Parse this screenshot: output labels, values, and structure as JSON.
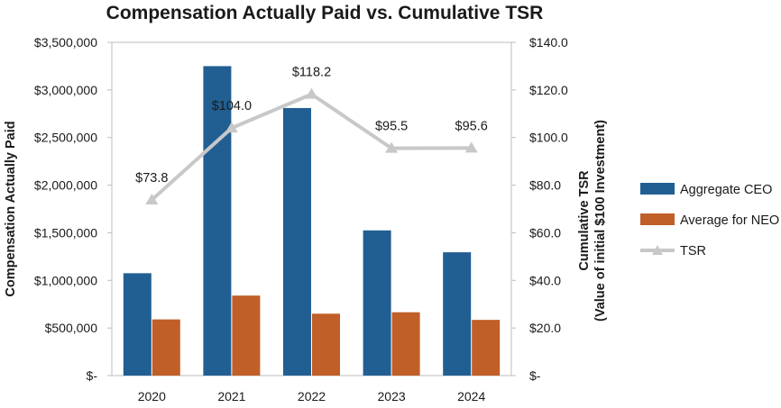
{
  "chart_data": {
    "type": "bar",
    "title": "Compensation Actually Paid vs. Cumulative TSR",
    "categories": [
      "2020",
      "2021",
      "2022",
      "2023",
      "2024"
    ],
    "series": [
      {
        "name": "Aggregate CEO",
        "axis": "left",
        "color": "#215f93",
        "values": [
          1075000,
          3250000,
          2810000,
          1525000,
          1295000
        ]
      },
      {
        "name": "Average for NEO",
        "axis": "left",
        "color": "#c05f27",
        "values": [
          590000,
          840000,
          650000,
          665000,
          585000
        ]
      }
    ],
    "line_series": {
      "name": "TSR",
      "axis": "right",
      "color": "#c8c8c8",
      "values": [
        73.8,
        104.0,
        118.2,
        95.5,
        95.6
      ],
      "labels": [
        "$73.8",
        "$104.0",
        "$118.2",
        "$95.5",
        "$95.6"
      ]
    },
    "ylabel_left": "Compensation Actually Paid",
    "ylabel_right_line1": "Cumulative TSR",
    "ylabel_right_line2": "(Value of initial $100 Investment)",
    "ylim_left": [
      0,
      3500000
    ],
    "ylim_right": [
      0,
      140
    ],
    "yticks_left": [
      "$-",
      "$500,000",
      "$1,000,000",
      "$1,500,000",
      "$2,000,000",
      "$2,500,000",
      "$3,000,000",
      "$3,500,000"
    ],
    "yticks_right": [
      "$-",
      "$20.0",
      "$40.0",
      "$60.0",
      "$80.0",
      "$100.0",
      "$120.0",
      "$140.0"
    ],
    "legend_position": "right",
    "grid": false
  }
}
